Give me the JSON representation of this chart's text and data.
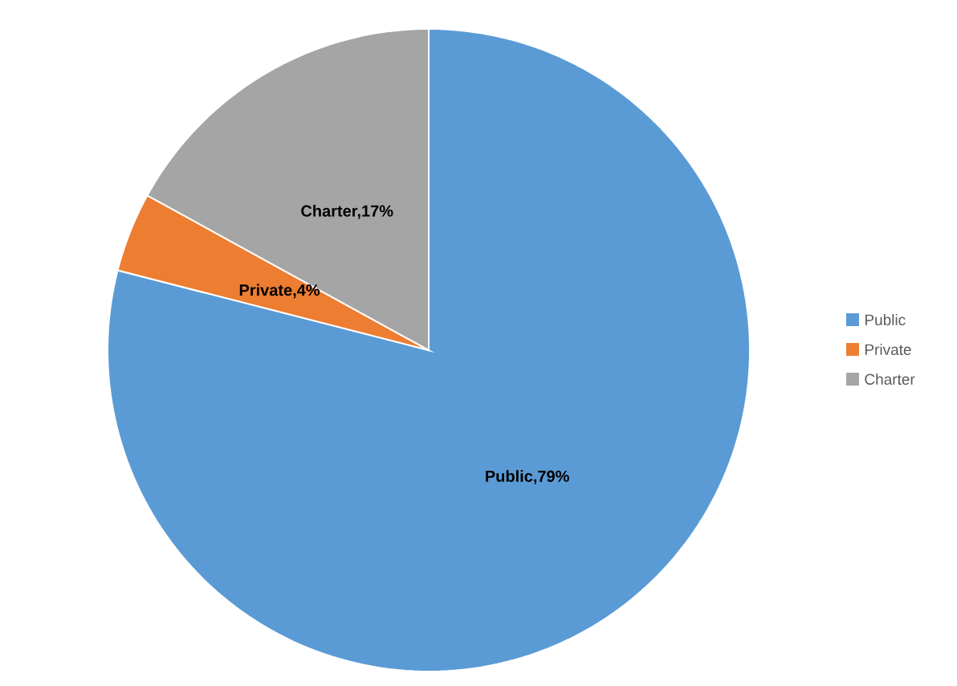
{
  "chart_data": {
    "type": "pie",
    "categories": [
      "Public",
      "Private",
      "Charter"
    ],
    "values": [
      79,
      4,
      17
    ],
    "colors": [
      "#5b9bd5",
      "#ed7d31",
      "#a5a5a5"
    ],
    "value_labels": [
      "Public,79%",
      "Private,4%",
      "Charter,17%"
    ],
    "data_labels": true,
    "legend": "right"
  }
}
